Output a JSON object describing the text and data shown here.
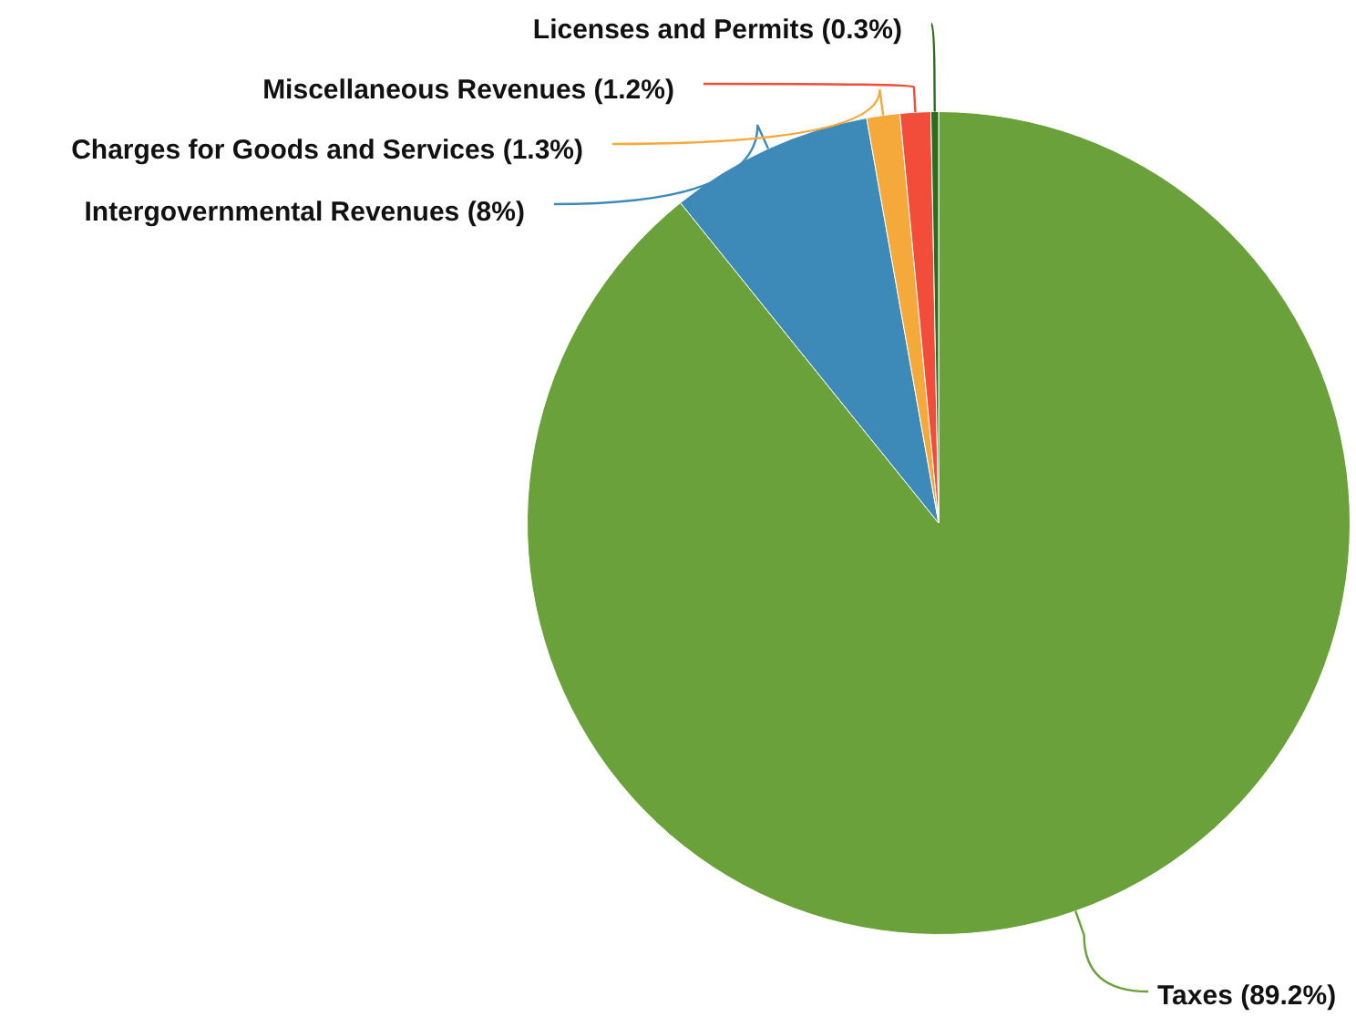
{
  "chart_data": {
    "type": "pie",
    "categories": [
      "Taxes",
      "Intergovernmental Revenues",
      "Charges for Goods and Services",
      "Miscellaneous Revenues",
      "Licenses and Permits"
    ],
    "values": [
      89.2,
      8,
      1.3,
      1.2,
      0.3
    ],
    "value_labels": [
      "(89.2%)",
      "(8%)",
      "(1.3%)",
      "(1.2%)",
      "(0.3%)"
    ],
    "colors": [
      "#6aa13a",
      "#3d8ab8",
      "#f5a93a",
      "#f24c3a",
      "#2e6b1e"
    ],
    "legend": false
  }
}
